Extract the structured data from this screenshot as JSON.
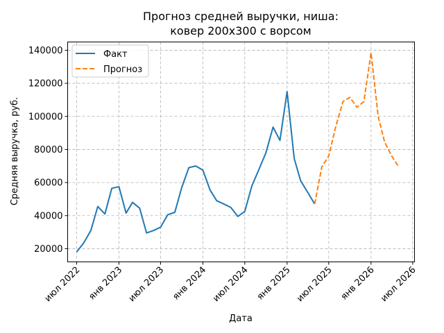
{
  "chart_data": {
    "type": "line",
    "title_line1": "Прогноз средней выручки, ниша:",
    "title_line2": "ковер 200х300 с ворсом",
    "xlabel": "Дата",
    "ylabel": "Средняя выручка, руб.",
    "ylim": [
      12000,
      145000
    ],
    "xlim": [
      "2022-05-23",
      "2026-07-09"
    ],
    "grid": true,
    "legend_position": "top-left",
    "y_ticks": [
      20000,
      40000,
      60000,
      80000,
      100000,
      120000,
      140000
    ],
    "x_ticks": [
      {
        "date": "2022-07-01",
        "label": "июл 2022"
      },
      {
        "date": "2023-01-01",
        "label": "янв 2023"
      },
      {
        "date": "2023-07-01",
        "label": "июл 2023"
      },
      {
        "date": "2024-01-01",
        "label": "янв 2024"
      },
      {
        "date": "2024-07-01",
        "label": "июл 2024"
      },
      {
        "date": "2025-01-01",
        "label": "янв 2025"
      },
      {
        "date": "2025-07-01",
        "label": "июл 2025"
      },
      {
        "date": "2026-01-01",
        "label": "янв 2026"
      },
      {
        "date": "2026-07-01",
        "label": "июл 2026"
      }
    ],
    "series": [
      {
        "name": "Факт",
        "color": "#1f77b4",
        "style": "solid",
        "points": [
          {
            "x": "2022-07-01",
            "y": 18000
          },
          {
            "x": "2022-08-01",
            "y": 23500
          },
          {
            "x": "2022-09-01",
            "y": 31000
          },
          {
            "x": "2022-10-01",
            "y": 45500
          },
          {
            "x": "2022-11-01",
            "y": 41000
          },
          {
            "x": "2022-12-01",
            "y": 56500
          },
          {
            "x": "2023-01-01",
            "y": 57500
          },
          {
            "x": "2023-02-01",
            "y": 41500
          },
          {
            "x": "2023-03-01",
            "y": 48000
          },
          {
            "x": "2023-04-01",
            "y": 44500
          },
          {
            "x": "2023-05-01",
            "y": 29500
          },
          {
            "x": "2023-06-01",
            "y": 31000
          },
          {
            "x": "2023-07-01",
            "y": 33000
          },
          {
            "x": "2023-08-01",
            "y": 40500
          },
          {
            "x": "2023-09-01",
            "y": 42000
          },
          {
            "x": "2023-10-01",
            "y": 57000
          },
          {
            "x": "2023-11-01",
            "y": 69000
          },
          {
            "x": "2023-12-01",
            "y": 70000
          },
          {
            "x": "2024-01-01",
            "y": 67500
          },
          {
            "x": "2024-02-01",
            "y": 55500
          },
          {
            "x": "2024-03-01",
            "y": 49000
          },
          {
            "x": "2024-04-01",
            "y": 47000
          },
          {
            "x": "2024-05-01",
            "y": 45000
          },
          {
            "x": "2024-06-01",
            "y": 39500
          },
          {
            "x": "2024-07-01",
            "y": 42500
          },
          {
            "x": "2024-08-01",
            "y": 58000
          },
          {
            "x": "2024-09-01",
            "y": 68000
          },
          {
            "x": "2024-10-01",
            "y": 78000
          },
          {
            "x": "2024-11-01",
            "y": 93500
          },
          {
            "x": "2024-12-01",
            "y": 85500
          },
          {
            "x": "2025-01-01",
            "y": 115000
          },
          {
            "x": "2025-02-01",
            "y": 74500
          },
          {
            "x": "2025-03-01",
            "y": 61000
          },
          {
            "x": "2025-04-01",
            "y": 54000
          },
          {
            "x": "2025-05-01",
            "y": 47000
          }
        ]
      },
      {
        "name": "Прогноз",
        "color": "#ff7f0e",
        "style": "dashed",
        "points": [
          {
            "x": "2025-05-01",
            "y": 47000
          },
          {
            "x": "2025-06-01",
            "y": 69500
          },
          {
            "x": "2025-07-01",
            "y": 76000
          },
          {
            "x": "2025-08-01",
            "y": 94000
          },
          {
            "x": "2025-09-01",
            "y": 109000
          },
          {
            "x": "2025-10-01",
            "y": 111500
          },
          {
            "x": "2025-11-01",
            "y": 105500
          },
          {
            "x": "2025-12-01",
            "y": 109000
          },
          {
            "x": "2026-01-01",
            "y": 138500
          },
          {
            "x": "2026-02-01",
            "y": 100000
          },
          {
            "x": "2026-03-01",
            "y": 84500
          },
          {
            "x": "2026-04-01",
            "y": 76000
          },
          {
            "x": "2026-05-01",
            "y": 69500
          }
        ]
      }
    ]
  }
}
